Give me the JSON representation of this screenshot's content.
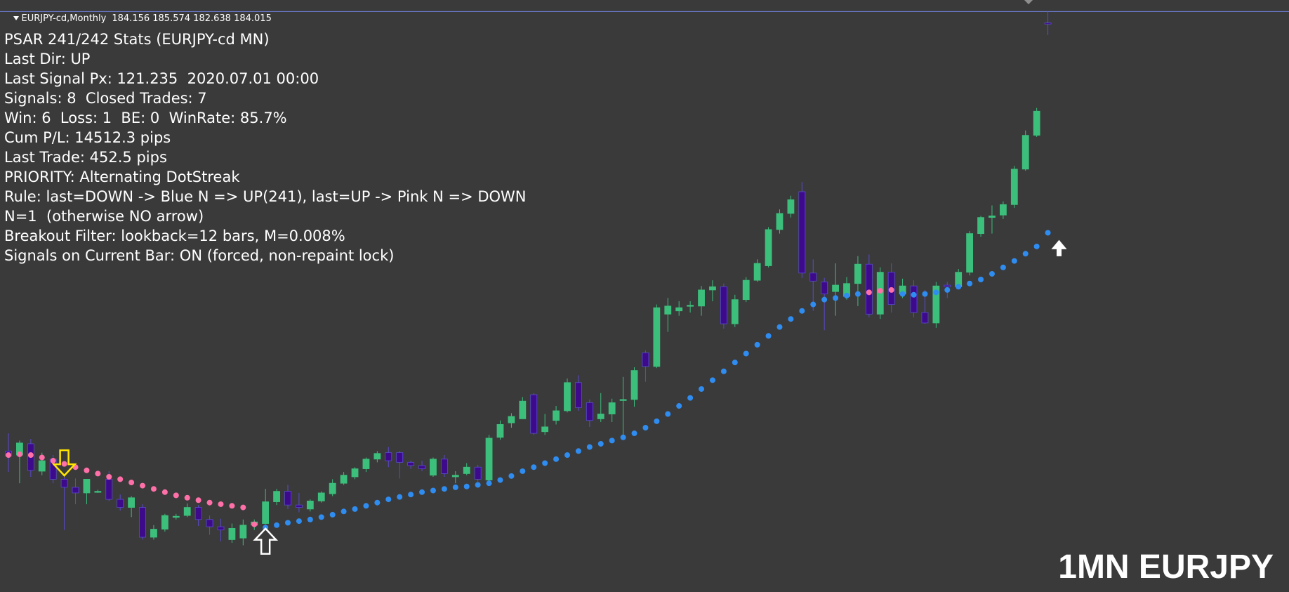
{
  "window": {
    "symbol_timeframe": "EURJPY-cd,Monthly",
    "ohlc": [
      "184.156",
      "185.574",
      "182.638",
      "184.015"
    ]
  },
  "stats_panel": {
    "lines": [
      "PSAR 241/242 Stats (EURJPY-cd MN)",
      "Last Dir: UP",
      "Last Signal Px: 121.235  2020.07.01 00:00",
      "Signals: 8  Closed Trades: 7",
      "Win: 6  Loss: 1  BE: 0  WinRate: 85.7%",
      "Cum P/L: 14512.3 pips",
      "Last Trade: 452.5 pips",
      "PRIORITY: Alternating DotStreak",
      "Rule: last=DOWN -> Blue N => UP(241), last=UP -> Pink N => DOWN",
      "N=1  (otherwise NO arrow)",
      "Breakout Filter: lookback=12 bars, M=0.008%",
      "Signals on Current Bar: ON (forced, non-repaint lock)"
    ]
  },
  "watermark": "1MN EURJPY",
  "colors": {
    "background": "#3a3a3a",
    "bull_candle": "#3dbf7c",
    "bear_candle": "#3d0a8c",
    "psar_bull_dot": "#2f8cf0",
    "psar_bear_dot": "#ff6fa8",
    "down_arrow": "#ffe600",
    "up_arrow": "#ffffff",
    "price_line": "#6f7fd6",
    "text": "#ffffff"
  },
  "chart_data": {
    "type": "candlestick",
    "title": "",
    "xlabel": "",
    "ylabel": "",
    "ylim": [
      113.5,
      187.0
    ],
    "grid": false,
    "current_price_line": 185.574,
    "candles": [
      {
        "o": 131.0,
        "h": 133.2,
        "l": 128.4,
        "c": 130.4
      },
      {
        "o": 130.5,
        "h": 132.3,
        "l": 127.0,
        "c": 132.0
      },
      {
        "o": 131.9,
        "h": 132.5,
        "l": 127.8,
        "c": 128.6
      },
      {
        "o": 128.5,
        "h": 130.8,
        "l": 128.0,
        "c": 129.8
      },
      {
        "o": 130.0,
        "h": 130.5,
        "l": 127.0,
        "c": 127.5
      },
      {
        "o": 127.5,
        "h": 128.0,
        "l": 121.2,
        "c": 126.5
      },
      {
        "o": 126.5,
        "h": 127.6,
        "l": 124.4,
        "c": 125.8
      },
      {
        "o": 125.8,
        "h": 127.5,
        "l": 124.4,
        "c": 127.5
      },
      {
        "o": 125.9,
        "h": 126.2,
        "l": 125.8,
        "c": 126.0
      },
      {
        "o": 127.5,
        "h": 128.5,
        "l": 124.8,
        "c": 125.0
      },
      {
        "o": 125.0,
        "h": 125.6,
        "l": 123.6,
        "c": 124.0
      },
      {
        "o": 124.0,
        "h": 125.4,
        "l": 122.8,
        "c": 125.2
      },
      {
        "o": 124.0,
        "h": 124.4,
        "l": 120.0,
        "c": 120.3
      },
      {
        "o": 120.3,
        "h": 121.8,
        "l": 120.0,
        "c": 121.3
      },
      {
        "o": 121.3,
        "h": 123.2,
        "l": 121.0,
        "c": 123.0
      },
      {
        "o": 122.8,
        "h": 123.2,
        "l": 122.5,
        "c": 122.9
      },
      {
        "o": 123.0,
        "h": 124.5,
        "l": 122.8,
        "c": 124.0
      },
      {
        "o": 124.0,
        "h": 124.3,
        "l": 121.7,
        "c": 122.5
      },
      {
        "o": 122.5,
        "h": 123.0,
        "l": 120.6,
        "c": 121.6
      },
      {
        "o": 121.6,
        "h": 122.6,
        "l": 119.8,
        "c": 121.2
      },
      {
        "o": 120.0,
        "h": 122.0,
        "l": 119.6,
        "c": 121.4
      },
      {
        "o": 120.2,
        "h": 122.5,
        "l": 119.3,
        "c": 121.8
      },
      {
        "o": 121.8,
        "h": 122.5,
        "l": 121.2,
        "c": 122.2
      },
      {
        "o": 122.0,
        "h": 126.3,
        "l": 121.9,
        "c": 124.7
      },
      {
        "o": 124.7,
        "h": 126.3,
        "l": 124.3,
        "c": 126.0
      },
      {
        "o": 126.0,
        "h": 126.8,
        "l": 123.8,
        "c": 124.3
      },
      {
        "o": 124.3,
        "h": 125.8,
        "l": 123.4,
        "c": 124.0
      },
      {
        "o": 123.8,
        "h": 125.0,
        "l": 123.5,
        "c": 124.8
      },
      {
        "o": 124.8,
        "h": 126.0,
        "l": 124.6,
        "c": 125.8
      },
      {
        "o": 125.7,
        "h": 127.5,
        "l": 125.4,
        "c": 127.0
      },
      {
        "o": 127.0,
        "h": 128.4,
        "l": 126.8,
        "c": 128.0
      },
      {
        "o": 127.8,
        "h": 129.0,
        "l": 127.5,
        "c": 128.8
      },
      {
        "o": 128.8,
        "h": 130.2,
        "l": 128.4,
        "c": 130.0
      },
      {
        "o": 130.0,
        "h": 131.0,
        "l": 129.6,
        "c": 130.7
      },
      {
        "o": 130.8,
        "h": 131.5,
        "l": 129.0,
        "c": 129.8
      },
      {
        "o": 130.8,
        "h": 131.0,
        "l": 127.6,
        "c": 129.6
      },
      {
        "o": 129.6,
        "h": 129.8,
        "l": 128.8,
        "c": 129.2
      },
      {
        "o": 129.2,
        "h": 129.8,
        "l": 128.5,
        "c": 128.8
      },
      {
        "o": 128.0,
        "h": 130.2,
        "l": 127.8,
        "c": 130.0
      },
      {
        "o": 130.0,
        "h": 130.5,
        "l": 127.8,
        "c": 128.2
      },
      {
        "o": 127.8,
        "h": 128.5,
        "l": 127.0,
        "c": 128.0
      },
      {
        "o": 128.2,
        "h": 129.5,
        "l": 128.0,
        "c": 129.0
      },
      {
        "o": 129.0,
        "h": 129.3,
        "l": 127.2,
        "c": 127.5
      },
      {
        "o": 127.4,
        "h": 133.0,
        "l": 126.8,
        "c": 132.6
      },
      {
        "o": 132.7,
        "h": 134.8,
        "l": 132.4,
        "c": 134.3
      },
      {
        "o": 134.5,
        "h": 135.7,
        "l": 133.9,
        "c": 135.3
      },
      {
        "o": 135.0,
        "h": 137.7,
        "l": 135.0,
        "c": 137.2
      },
      {
        "o": 138.0,
        "h": 138.2,
        "l": 133.0,
        "c": 133.2
      },
      {
        "o": 133.4,
        "h": 135.6,
        "l": 133.0,
        "c": 134.0
      },
      {
        "o": 134.8,
        "h": 136.6,
        "l": 134.3,
        "c": 136.0
      },
      {
        "o": 136.0,
        "h": 140.0,
        "l": 135.8,
        "c": 139.5
      },
      {
        "o": 139.5,
        "h": 140.4,
        "l": 136.0,
        "c": 136.4
      },
      {
        "o": 137.0,
        "h": 137.4,
        "l": 134.0,
        "c": 134.8
      },
      {
        "o": 135.0,
        "h": 138.2,
        "l": 134.6,
        "c": 135.6
      },
      {
        "o": 135.6,
        "h": 137.5,
        "l": 134.6,
        "c": 137.0
      },
      {
        "o": 137.3,
        "h": 140.2,
        "l": 132.6,
        "c": 137.4
      },
      {
        "o": 137.4,
        "h": 141.4,
        "l": 136.5,
        "c": 141.0
      },
      {
        "o": 143.2,
        "h": 143.5,
        "l": 139.6,
        "c": 141.5
      },
      {
        "o": 141.5,
        "h": 149.2,
        "l": 141.3,
        "c": 148.8
      },
      {
        "o": 148.0,
        "h": 150.0,
        "l": 145.8,
        "c": 149.0
      },
      {
        "o": 148.4,
        "h": 149.6,
        "l": 147.8,
        "c": 148.8
      },
      {
        "o": 149.0,
        "h": 149.6,
        "l": 148.2,
        "c": 149.1
      },
      {
        "o": 149.0,
        "h": 151.5,
        "l": 147.8,
        "c": 151.0
      },
      {
        "o": 151.0,
        "h": 152.2,
        "l": 149.6,
        "c": 151.4
      },
      {
        "o": 151.4,
        "h": 151.8,
        "l": 146.2,
        "c": 146.8
      },
      {
        "o": 146.8,
        "h": 150.4,
        "l": 146.4,
        "c": 149.8
      },
      {
        "o": 149.8,
        "h": 152.6,
        "l": 149.5,
        "c": 152.2
      },
      {
        "o": 152.2,
        "h": 154.8,
        "l": 152.0,
        "c": 154.3
      },
      {
        "o": 154.0,
        "h": 158.8,
        "l": 153.8,
        "c": 158.5
      },
      {
        "o": 158.5,
        "h": 161.0,
        "l": 158.0,
        "c": 160.5
      },
      {
        "o": 160.5,
        "h": 162.7,
        "l": 160.0,
        "c": 162.2
      },
      {
        "o": 163.2,
        "h": 164.4,
        "l": 152.5,
        "c": 153.1
      },
      {
        "o": 153.1,
        "h": 154.8,
        "l": 148.4,
        "c": 152.1
      },
      {
        "o": 152.0,
        "h": 152.5,
        "l": 146.0,
        "c": 150.5
      },
      {
        "o": 150.8,
        "h": 154.3,
        "l": 147.8,
        "c": 151.6
      },
      {
        "o": 150.2,
        "h": 152.6,
        "l": 149.8,
        "c": 151.8
      },
      {
        "o": 151.8,
        "h": 155.2,
        "l": 149.0,
        "c": 154.2
      },
      {
        "o": 154.2,
        "h": 155.4,
        "l": 147.6,
        "c": 148.0
      },
      {
        "o": 148.0,
        "h": 153.8,
        "l": 147.4,
        "c": 153.2
      },
      {
        "o": 153.2,
        "h": 154.3,
        "l": 148.2,
        "c": 149.2
      },
      {
        "o": 150.5,
        "h": 152.4,
        "l": 150.0,
        "c": 151.5
      },
      {
        "o": 151.5,
        "h": 152.2,
        "l": 147.6,
        "c": 148.2
      },
      {
        "o": 148.2,
        "h": 151.0,
        "l": 146.8,
        "c": 146.9
      },
      {
        "o": 146.9,
        "h": 152.0,
        "l": 146.3,
        "c": 151.5
      },
      {
        "o": 151.6,
        "h": 152.0,
        "l": 150.0,
        "c": 151.4
      },
      {
        "o": 151.4,
        "h": 153.6,
        "l": 151.2,
        "c": 153.2
      },
      {
        "o": 153.2,
        "h": 158.3,
        "l": 152.8,
        "c": 158.0
      },
      {
        "o": 158.0,
        "h": 160.2,
        "l": 157.6,
        "c": 160.0
      },
      {
        "o": 160.0,
        "h": 161.5,
        "l": 158.0,
        "c": 160.2
      },
      {
        "o": 160.3,
        "h": 162.0,
        "l": 159.8,
        "c": 161.6
      },
      {
        "o": 161.6,
        "h": 166.4,
        "l": 161.2,
        "c": 166.0
      },
      {
        "o": 166.0,
        "h": 170.8,
        "l": 165.8,
        "c": 170.2
      },
      {
        "o": 170.2,
        "h": 173.6,
        "l": 170.0,
        "c": 173.2
      },
      {
        "o": 184.156,
        "h": 185.574,
        "l": 182.638,
        "c": 184.015
      }
    ],
    "psar": [
      {
        "v": 130.5,
        "d": "down"
      },
      {
        "v": 130.6,
        "d": "down"
      },
      {
        "v": 130.5,
        "d": "down"
      },
      {
        "v": 130.2,
        "d": "down"
      },
      {
        "v": 129.8,
        "d": "down"
      },
      {
        "v": 129.4,
        "d": "down"
      },
      {
        "v": 129.0,
        "d": "down"
      },
      {
        "v": 128.6,
        "d": "down"
      },
      {
        "v": 128.2,
        "d": "down"
      },
      {
        "v": 127.8,
        "d": "down"
      },
      {
        "v": 127.5,
        "d": "down"
      },
      {
        "v": 127.1,
        "d": "down"
      },
      {
        "v": 126.7,
        "d": "down"
      },
      {
        "v": 126.3,
        "d": "down"
      },
      {
        "v": 125.9,
        "d": "down"
      },
      {
        "v": 125.5,
        "d": "down"
      },
      {
        "v": 125.2,
        "d": "down"
      },
      {
        "v": 124.9,
        "d": "down"
      },
      {
        "v": 124.6,
        "d": "down"
      },
      {
        "v": 124.4,
        "d": "down"
      },
      {
        "v": 124.2,
        "d": "down"
      },
      {
        "v": 124.0,
        "d": "down"
      },
      {
        "v": 121.9,
        "d": "down"
      },
      {
        "v": 121.5,
        "d": "up"
      },
      {
        "v": 121.8,
        "d": "up"
      },
      {
        "v": 122.1,
        "d": "up"
      },
      {
        "v": 122.3,
        "d": "up"
      },
      {
        "v": 122.5,
        "d": "up"
      },
      {
        "v": 122.8,
        "d": "up"
      },
      {
        "v": 123.1,
        "d": "up"
      },
      {
        "v": 123.5,
        "d": "up"
      },
      {
        "v": 123.8,
        "d": "up"
      },
      {
        "v": 124.2,
        "d": "up"
      },
      {
        "v": 124.6,
        "d": "up"
      },
      {
        "v": 125.0,
        "d": "up"
      },
      {
        "v": 125.3,
        "d": "up"
      },
      {
        "v": 125.6,
        "d": "up"
      },
      {
        "v": 125.9,
        "d": "up"
      },
      {
        "v": 126.1,
        "d": "up"
      },
      {
        "v": 126.3,
        "d": "up"
      },
      {
        "v": 126.5,
        "d": "up"
      },
      {
        "v": 126.6,
        "d": "up"
      },
      {
        "v": 126.8,
        "d": "up"
      },
      {
        "v": 127.0,
        "d": "up"
      },
      {
        "v": 127.4,
        "d": "up"
      },
      {
        "v": 127.9,
        "d": "up"
      },
      {
        "v": 128.5,
        "d": "up"
      },
      {
        "v": 129.0,
        "d": "up"
      },
      {
        "v": 129.5,
        "d": "up"
      },
      {
        "v": 130.0,
        "d": "up"
      },
      {
        "v": 130.5,
        "d": "up"
      },
      {
        "v": 131.0,
        "d": "up"
      },
      {
        "v": 131.5,
        "d": "up"
      },
      {
        "v": 131.9,
        "d": "up"
      },
      {
        "v": 132.3,
        "d": "up"
      },
      {
        "v": 132.7,
        "d": "up"
      },
      {
        "v": 133.2,
        "d": "up"
      },
      {
        "v": 133.9,
        "d": "up"
      },
      {
        "v": 134.7,
        "d": "up"
      },
      {
        "v": 135.6,
        "d": "up"
      },
      {
        "v": 136.6,
        "d": "up"
      },
      {
        "v": 137.6,
        "d": "up"
      },
      {
        "v": 138.7,
        "d": "up"
      },
      {
        "v": 139.8,
        "d": "up"
      },
      {
        "v": 140.9,
        "d": "up"
      },
      {
        "v": 142.0,
        "d": "up"
      },
      {
        "v": 143.1,
        "d": "up"
      },
      {
        "v": 144.2,
        "d": "up"
      },
      {
        "v": 145.3,
        "d": "up"
      },
      {
        "v": 146.4,
        "d": "up"
      },
      {
        "v": 147.4,
        "d": "up"
      },
      {
        "v": 148.4,
        "d": "up"
      },
      {
        "v": 149.2,
        "d": "up"
      },
      {
        "v": 149.8,
        "d": "up"
      },
      {
        "v": 150.0,
        "d": "up"
      },
      {
        "v": 150.3,
        "d": "up"
      },
      {
        "v": 150.5,
        "d": "up"
      },
      {
        "v": 150.7,
        "d": "down"
      },
      {
        "v": 150.9,
        "d": "down"
      },
      {
        "v": 151.0,
        "d": "down"
      },
      {
        "v": 150.5,
        "d": "up"
      },
      {
        "v": 150.4,
        "d": "up"
      },
      {
        "v": 150.5,
        "d": "up"
      },
      {
        "v": 150.7,
        "d": "up"
      },
      {
        "v": 151.0,
        "d": "up"
      },
      {
        "v": 151.4,
        "d": "up"
      },
      {
        "v": 151.8,
        "d": "up"
      },
      {
        "v": 152.3,
        "d": "up"
      },
      {
        "v": 153.0,
        "d": "up"
      },
      {
        "v": 153.8,
        "d": "up"
      },
      {
        "v": 154.6,
        "d": "up"
      },
      {
        "v": 155.5,
        "d": "up"
      },
      {
        "v": 156.4,
        "d": "up"
      },
      {
        "v": 158.1,
        "d": "up"
      }
    ],
    "signals": [
      {
        "bar": 5,
        "type": "sell",
        "price": 130.4
      },
      {
        "bar": 23,
        "type": "buy",
        "price": 121.2
      },
      {
        "bar": 94,
        "type": "buy",
        "price": 156.8
      }
    ]
  }
}
